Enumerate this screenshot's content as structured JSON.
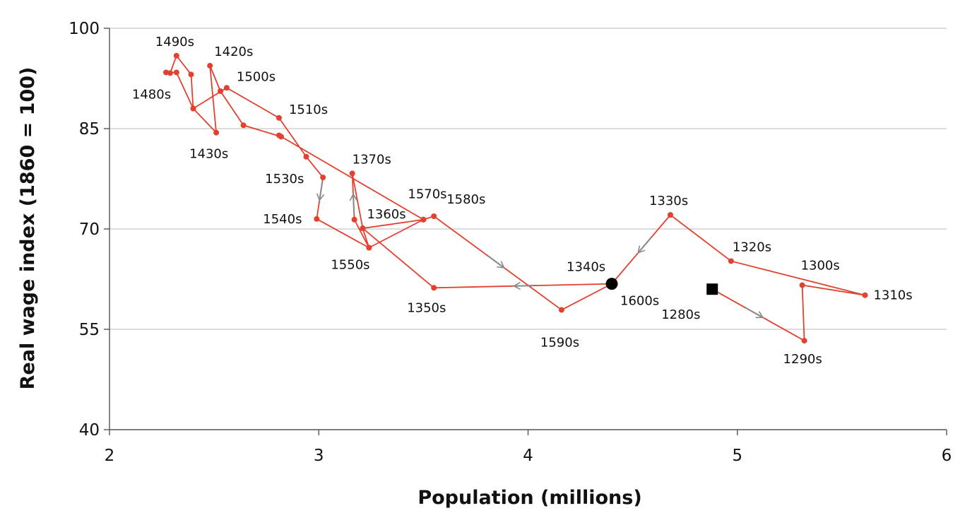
{
  "chart_data": {
    "type": "line",
    "title": "",
    "xlabel": "Population (millions)",
    "ylabel": "Real wage index (1860 = 100)",
    "xlim": [
      2,
      6
    ],
    "ylim": [
      40,
      100
    ],
    "xticks": [
      "2",
      "3",
      "4",
      "5",
      "6"
    ],
    "yticks": [
      "40",
      "55",
      "70",
      "85",
      "100"
    ],
    "grid": "horizontal",
    "line_color": "#e2412f",
    "arrow_color": "#8a8a8a",
    "marker_color": "#000000",
    "series": [
      {
        "points": [
          {
            "label": "1280s",
            "x": 4.88,
            "y": 61.0,
            "marker": "square"
          },
          {
            "label": "1290s",
            "x": 5.32,
            "y": 53.3
          },
          {
            "label": "1300s",
            "x": 5.31,
            "y": 61.6
          },
          {
            "label": "1310s",
            "x": 5.61,
            "y": 60.1
          },
          {
            "label": "1320s",
            "x": 4.97,
            "y": 65.2
          },
          {
            "label": "1330s",
            "x": 4.68,
            "y": 72.1
          },
          {
            "label": "1340s",
            "x": 4.4,
            "y": 61.8,
            "marker": "circle"
          },
          {
            "label": "1350s",
            "x": 3.55,
            "y": 61.2
          },
          {
            "label": "1360s",
            "x": 3.21,
            "y": 70.1
          },
          {
            "label": "1370s",
            "x": 3.16,
            "y": 78.3
          },
          {
            "label": "",
            "x": 3.17,
            "y": 71.4
          },
          {
            "label": "",
            "x": 3.24,
            "y": 67.2
          },
          {
            "label": "",
            "x": 3.5,
            "y": 71.4
          },
          {
            "label": "",
            "x": 2.81,
            "y": 84.0
          },
          {
            "label": "",
            "x": 2.82,
            "y": 83.8
          },
          {
            "label": "",
            "x": 2.64,
            "y": 85.5
          },
          {
            "label": "",
            "x": 2.53,
            "y": 90.6
          },
          {
            "label": "1420s",
            "x": 2.48,
            "y": 94.4
          },
          {
            "label": "1430s",
            "x": 2.51,
            "y": 84.4
          },
          {
            "label": "",
            "x": 2.4,
            "y": 88.0
          },
          {
            "label": "",
            "x": 2.32,
            "y": 93.4
          },
          {
            "label": "",
            "x": 2.27,
            "y": 93.4
          },
          {
            "label": "1480s",
            "x": 2.29,
            "y": 93.3
          },
          {
            "label": "1490s",
            "x": 2.32,
            "y": 95.9
          },
          {
            "label": "",
            "x": 2.39,
            "y": 93.1
          },
          {
            "label": "",
            "x": 2.4,
            "y": 88.0
          },
          {
            "label": "1500s",
            "x": 2.56,
            "y": 91.1
          },
          {
            "label": "1510s",
            "x": 2.81,
            "y": 86.6
          },
          {
            "label": "",
            "x": 2.94,
            "y": 80.8
          },
          {
            "label": "1530s",
            "x": 3.02,
            "y": 77.7
          },
          {
            "label": "1540s",
            "x": 2.99,
            "y": 71.5
          },
          {
            "label": "1550s",
            "x": 3.24,
            "y": 67.2
          },
          {
            "label": "",
            "x": 3.21,
            "y": 70.1
          },
          {
            "label": "1570s",
            "x": 3.5,
            "y": 71.4
          },
          {
            "label": "1580s",
            "x": 3.55,
            "y": 71.9
          },
          {
            "label": "1590s",
            "x": 4.16,
            "y": 57.9
          },
          {
            "label": "1600s",
            "x": 4.4,
            "y": 61.8
          }
        ]
      }
    ],
    "label_offsets_note": "",
    "arrows": [
      {
        "from": 0,
        "to": 1
      },
      {
        "from": 5,
        "to": 6
      },
      {
        "from": 6,
        "to": 7
      },
      {
        "from": 10,
        "to": 9
      },
      {
        "from": 29,
        "to": 30
      },
      {
        "from": 34,
        "to": 35
      }
    ]
  }
}
